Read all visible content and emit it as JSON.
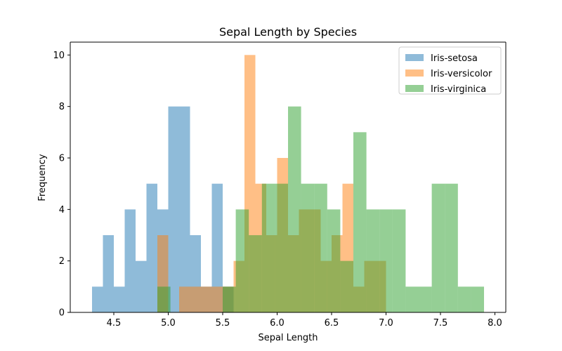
{
  "chart_data": {
    "type": "histogram",
    "title": "Sepal Length by Species",
    "xlabel": "Sepal Length",
    "ylabel": "Frequency",
    "xlim": [
      4.1,
      8.1
    ],
    "ylim": [
      0,
      10.5
    ],
    "xticks": [
      "4.5",
      "5.0",
      "5.5",
      "6.0",
      "6.5",
      "7.0",
      "7.5",
      "8.0"
    ],
    "yticks": [
      "0",
      "2",
      "4",
      "6",
      "8",
      "10"
    ],
    "grid": false,
    "legend_position": "top-right",
    "series": [
      {
        "name": "Iris-setosa",
        "color": "#1f77b4",
        "bin_start": 4.3,
        "bin_width": 0.1,
        "counts": [
          1,
          3,
          1,
          4,
          2,
          5,
          4,
          8,
          8,
          3,
          1,
          5,
          1
        ]
      },
      {
        "name": "Iris-versicolor",
        "color": "#ff7f0e",
        "bin_start": 4.9,
        "bin_width": 0.1,
        "counts": [
          3,
          0,
          1,
          1,
          1,
          1,
          1,
          2,
          10,
          5,
          3,
          6,
          3,
          4,
          4,
          2,
          3,
          5,
          1,
          2,
          2
        ]
      },
      {
        "name": "Iris-virginica",
        "color": "#2ca02c",
        "bin_start": 4.9,
        "bin_width": 0.12,
        "counts": [
          1,
          0,
          0,
          0,
          0,
          1,
          4,
          3,
          5,
          5,
          8,
          5,
          5,
          4,
          2,
          7,
          4,
          4,
          4,
          1,
          1,
          5,
          5,
          1,
          1
        ]
      }
    ]
  }
}
